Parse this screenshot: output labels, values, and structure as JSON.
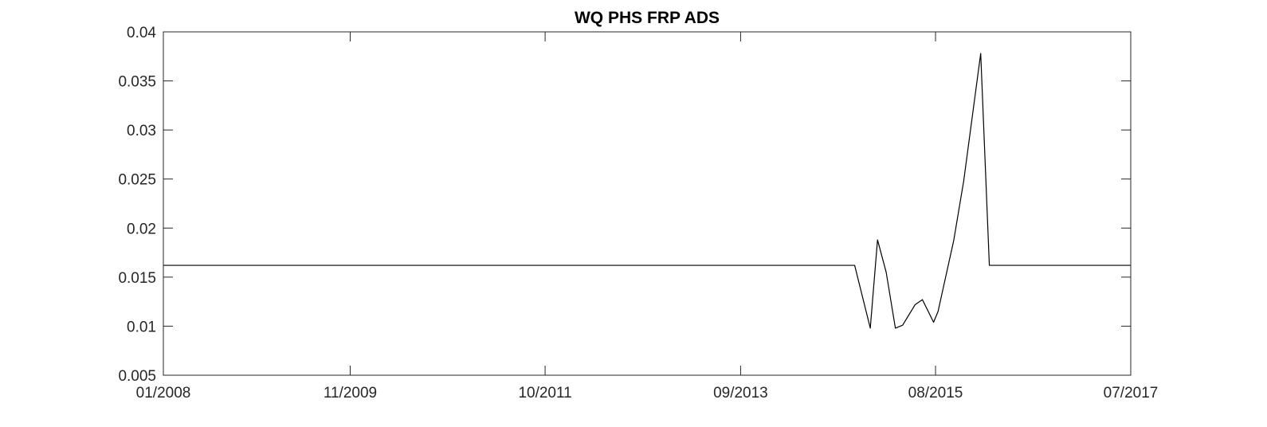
{
  "chart_data": {
    "type": "line",
    "title": "WQ PHS FRP ADS",
    "xlabel": "",
    "ylabel": "",
    "x_axis_type": "date",
    "xlim": [
      "2008-01-01",
      "2017-07-01"
    ],
    "ylim": [
      0.005,
      0.04
    ],
    "x_ticks": [
      {
        "date": "2008-01-01",
        "label": "01/2008"
      },
      {
        "date": "2009-11-01",
        "label": "11/2009"
      },
      {
        "date": "2011-10-01",
        "label": "10/2011"
      },
      {
        "date": "2013-09-01",
        "label": "09/2013"
      },
      {
        "date": "2015-08-01",
        "label": "08/2015"
      },
      {
        "date": "2017-07-01",
        "label": "07/2017"
      }
    ],
    "y_ticks": [
      {
        "value": 0.005,
        "label": "0.005"
      },
      {
        "value": 0.01,
        "label": "0.01"
      },
      {
        "value": 0.015,
        "label": "0.015"
      },
      {
        "value": 0.02,
        "label": "0.02"
      },
      {
        "value": 0.025,
        "label": "0.025"
      },
      {
        "value": 0.03,
        "label": "0.03"
      },
      {
        "value": 0.035,
        "label": "0.035"
      },
      {
        "value": 0.04,
        "label": "0.04"
      }
    ],
    "grid": false,
    "box": true,
    "line_color": "#000000",
    "series": [
      {
        "x": [
          "2008-01-01",
          "2014-10-15",
          "2014-12-10",
          "2015-01-05",
          "2015-02-05",
          "2015-03-10",
          "2015-04-05",
          "2015-05-20",
          "2015-06-15",
          "2015-07-25",
          "2015-08-10",
          "2015-10-05",
          "2015-11-10",
          "2016-01-10",
          "2016-02-10",
          "2017-07-01"
        ],
        "y": [
          0.0162,
          0.0162,
          0.0098,
          0.0188,
          0.0155,
          0.0098,
          0.0101,
          0.0122,
          0.0127,
          0.0104,
          0.0115,
          0.0187,
          0.0248,
          0.0378,
          0.0162,
          0.0162
        ]
      }
    ]
  }
}
